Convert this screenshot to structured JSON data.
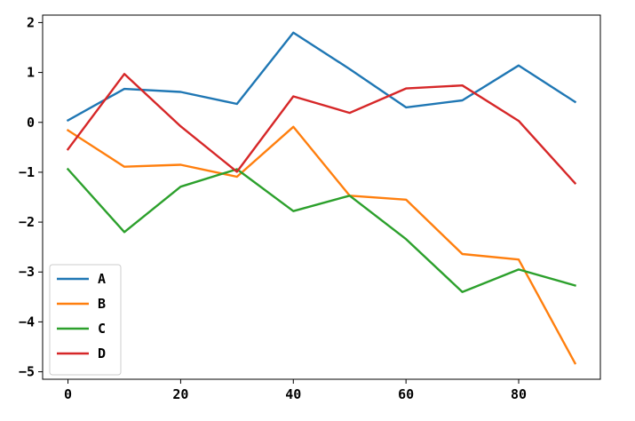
{
  "chart_data": {
    "type": "line",
    "title": "",
    "xlabel": "",
    "ylabel": "",
    "x": [
      0,
      10,
      20,
      30,
      40,
      50,
      60,
      70,
      80,
      90
    ],
    "xlim": [
      -4.5,
      94.5
    ],
    "ylim": [
      -5.15,
      2.15
    ],
    "x_ticks": [
      0,
      20,
      40,
      60,
      80
    ],
    "y_ticks": [
      2,
      1,
      0,
      -1,
      -2,
      -3,
      -4,
      -5
    ],
    "x_tick_labels": [
      "0",
      "20",
      "40",
      "60",
      "80"
    ],
    "y_tick_labels": [
      "2",
      "1",
      "0",
      "−1",
      "−2",
      "−3",
      "−4",
      "−5"
    ],
    "grid": false,
    "legend_position": "lower-left",
    "series": [
      {
        "name": "A",
        "color": "#1f77b4",
        "values": [
          0.04,
          0.67,
          0.61,
          0.37,
          1.8,
          1.07,
          0.3,
          0.44,
          1.14,
          0.41
        ]
      },
      {
        "name": "B",
        "color": "#ff7f0e",
        "values": [
          -0.16,
          -0.89,
          -0.85,
          -1.09,
          -0.09,
          -1.47,
          -1.55,
          -2.64,
          -2.75,
          -4.83
        ]
      },
      {
        "name": "C",
        "color": "#2ca02c",
        "values": [
          -0.94,
          -2.2,
          -1.29,
          -0.94,
          -1.78,
          -1.47,
          -2.34,
          -3.4,
          -2.95,
          -3.27
        ]
      },
      {
        "name": "D",
        "color": "#d62728",
        "values": [
          -0.54,
          0.97,
          -0.08,
          -0.99,
          0.52,
          0.19,
          0.68,
          0.74,
          0.03,
          -1.22
        ]
      }
    ]
  }
}
